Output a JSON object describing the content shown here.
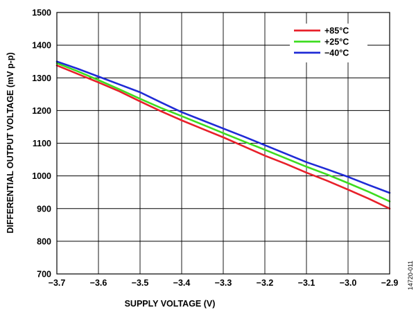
{
  "chart_data": {
    "type": "line",
    "title": "",
    "xlabel": "SUPPLY VOLTAGE (V)",
    "ylabel": "DIFFERENTIAL OUTPUT VOLTAGE (mV p-p)",
    "xlim": [
      -3.7,
      -2.9
    ],
    "ylim": [
      700,
      1500
    ],
    "x_ticks": [
      "−3.7",
      "−3.6",
      "−3.5",
      "−3.4",
      "−3.3",
      "−3.2",
      "−3.1",
      "−3.0",
      "−2.9"
    ],
    "y_ticks": [
      "700",
      "800",
      "900",
      "1000",
      "1100",
      "1200",
      "1300",
      "1400",
      "1500"
    ],
    "grid": true,
    "legend_position": "top-right",
    "series": [
      {
        "name": "+85°C",
        "color": "#e8202a",
        "x": [
          -3.7,
          -3.65,
          -3.6,
          -3.55,
          -3.5,
          -3.45,
          -3.4,
          -3.35,
          -3.3,
          -3.25,
          -3.2,
          -3.15,
          -3.1,
          -3.05,
          -3.0,
          -2.95,
          -2.9
        ],
        "values": [
          1338,
          1312,
          1286,
          1259,
          1228,
          1198,
          1170,
          1144,
          1118,
          1090,
          1062,
          1037,
          1010,
          985,
          958,
          930,
          900
        ]
      },
      {
        "name": "+25°C",
        "color": "#3ddc1f",
        "x": [
          -3.7,
          -3.65,
          -3.6,
          -3.55,
          -3.5,
          -3.45,
          -3.4,
          -3.35,
          -3.3,
          -3.25,
          -3.2,
          -3.15,
          -3.1,
          -3.05,
          -3.0,
          -2.95,
          -2.9
        ],
        "values": [
          1345,
          1320,
          1293,
          1265,
          1236,
          1208,
          1183,
          1157,
          1131,
          1105,
          1080,
          1054,
          1028,
          1004,
          978,
          951,
          922
        ]
      },
      {
        "name": "−40°C",
        "color": "#1f2bd6",
        "x": [
          -3.7,
          -3.65,
          -3.6,
          -3.55,
          -3.5,
          -3.45,
          -3.4,
          -3.35,
          -3.3,
          -3.25,
          -3.2,
          -3.15,
          -3.1,
          -3.05,
          -3.0,
          -2.95,
          -2.9
        ],
        "values": [
          1350,
          1328,
          1304,
          1280,
          1256,
          1225,
          1195,
          1170,
          1145,
          1120,
          1094,
          1068,
          1042,
          1020,
          997,
          972,
          948
        ]
      }
    ]
  },
  "figure_id": "14720-011"
}
